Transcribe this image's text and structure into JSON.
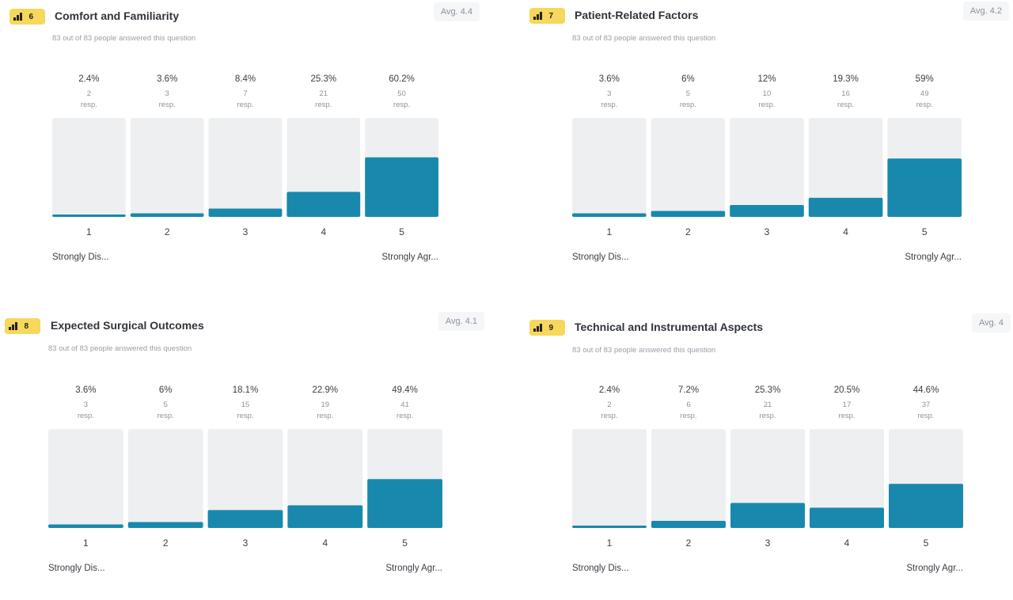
{
  "colors": {
    "bar_fill": "#1889ad",
    "bar_bg": "#eeeff1",
    "badge": "#f7d75c"
  },
  "badge_icon": "bar-chart-icon",
  "resp_label": "resp.",
  "questions": [
    {
      "number": "6",
      "title": "Comfort and Familiarity",
      "subtitle": "83 out of 83 people answered this question",
      "avg": "Avg. 4.4",
      "min_label": "Strongly Dis...",
      "max_label": "Strongly Agr..."
    },
    {
      "number": "7",
      "title": "Patient-Related Factors",
      "subtitle": "83 out of 83 people answered this question",
      "avg": "Avg. 4.2",
      "min_label": "Strongly Dis...",
      "max_label": "Strongly Agr..."
    },
    {
      "number": "8",
      "title": "Expected Surgical Outcomes",
      "subtitle": "83 out of 83 people answered this question",
      "avg": "Avg. 4.1",
      "min_label": "Strongly Dis...",
      "max_label": "Strongly Agr..."
    },
    {
      "number": "9",
      "title": "Technical and Instrumental Aspects",
      "subtitle": "83 out of 83 people answered this question",
      "avg": "Avg. 4",
      "min_label": "Strongly Dis...",
      "max_label": "Strongly Agr..."
    }
  ],
  "chart_data": [
    {
      "type": "bar",
      "categories": [
        "1",
        "2",
        "3",
        "4",
        "5"
      ],
      "percent_labels": [
        "2.4%",
        "3.6%",
        "8.4%",
        "25.3%",
        "60.2%"
      ],
      "percent_values": [
        2.4,
        3.6,
        8.4,
        25.3,
        60.2
      ],
      "responses": [
        2,
        3,
        7,
        21,
        50
      ],
      "ylim": [
        0,
        100
      ]
    },
    {
      "type": "bar",
      "categories": [
        "1",
        "2",
        "3",
        "4",
        "5"
      ],
      "percent_labels": [
        "3.6%",
        "6%",
        "12%",
        "19.3%",
        "59%"
      ],
      "percent_values": [
        3.6,
        6,
        12,
        19.3,
        59
      ],
      "responses": [
        3,
        5,
        10,
        16,
        49
      ],
      "ylim": [
        0,
        100
      ]
    },
    {
      "type": "bar",
      "categories": [
        "1",
        "2",
        "3",
        "4",
        "5"
      ],
      "percent_labels": [
        "3.6%",
        "6%",
        "18.1%",
        "22.9%",
        "49.4%"
      ],
      "percent_values": [
        3.6,
        6,
        18.1,
        22.9,
        49.4
      ],
      "responses": [
        3,
        5,
        15,
        19,
        41
      ],
      "ylim": [
        0,
        100
      ]
    },
    {
      "type": "bar",
      "categories": [
        "1",
        "2",
        "3",
        "4",
        "5"
      ],
      "percent_labels": [
        "2.4%",
        "7.2%",
        "25.3%",
        "20.5%",
        "44.6%"
      ],
      "percent_values": [
        2.4,
        7.2,
        25.3,
        20.5,
        44.6
      ],
      "responses": [
        2,
        6,
        21,
        17,
        37
      ],
      "ylim": [
        0,
        100
      ]
    }
  ]
}
